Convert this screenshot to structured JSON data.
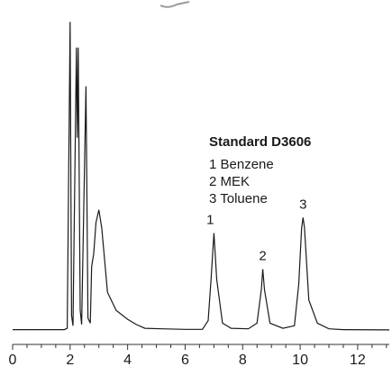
{
  "chart_data": {
    "type": "line",
    "title": "Standard D3606",
    "xlabel": "",
    "ylabel": "",
    "xlim": [
      0,
      13.1
    ],
    "x_ticks": [
      0,
      2,
      4,
      6,
      8,
      10,
      12
    ],
    "minor_ticks_per_major": 4,
    "grid": false,
    "legend_position": "right",
    "line_color": "#1a1a1a",
    "legend": [
      {
        "label": "1 Benzene"
      },
      {
        "label": "2 MEK"
      },
      {
        "label": "3 Toluene"
      }
    ],
    "peaks": [
      {
        "label": "1",
        "x": 7.0,
        "height": 0.38
      },
      {
        "label": "2",
        "x": 8.7,
        "height": 0.24
      },
      {
        "label": "3",
        "x": 10.1,
        "height": 0.44
      }
    ],
    "trace": [
      [
        0.0,
        0.005
      ],
      [
        1.8,
        0.005
      ],
      [
        1.9,
        0.01
      ],
      [
        2.0,
        1.2
      ],
      [
        2.05,
        0.06
      ],
      [
        2.1,
        0.02
      ],
      [
        2.22,
        1.1
      ],
      [
        2.25,
        0.75
      ],
      [
        2.28,
        1.1
      ],
      [
        2.35,
        0.08
      ],
      [
        2.4,
        0.025
      ],
      [
        2.55,
        0.95
      ],
      [
        2.62,
        0.05
      ],
      [
        2.7,
        0.03
      ],
      [
        2.75,
        0.25
      ],
      [
        2.82,
        0.3
      ],
      [
        2.9,
        0.42
      ],
      [
        3.0,
        0.47
      ],
      [
        3.1,
        0.4
      ],
      [
        3.3,
        0.15
      ],
      [
        3.6,
        0.08
      ],
      [
        4.0,
        0.045
      ],
      [
        4.3,
        0.025
      ],
      [
        4.6,
        0.01
      ],
      [
        5.2,
        0.008
      ],
      [
        6.0,
        0.006
      ],
      [
        6.6,
        0.006
      ],
      [
        6.8,
        0.04
      ],
      [
        6.9,
        0.2
      ],
      [
        7.0,
        0.38
      ],
      [
        7.1,
        0.2
      ],
      [
        7.3,
        0.03
      ],
      [
        7.6,
        0.01
      ],
      [
        8.2,
        0.008
      ],
      [
        8.5,
        0.03
      ],
      [
        8.65,
        0.16
      ],
      [
        8.7,
        0.24
      ],
      [
        8.76,
        0.16
      ],
      [
        8.95,
        0.03
      ],
      [
        9.4,
        0.01
      ],
      [
        9.8,
        0.02
      ],
      [
        9.95,
        0.18
      ],
      [
        10.05,
        0.4
      ],
      [
        10.1,
        0.44
      ],
      [
        10.15,
        0.4
      ],
      [
        10.3,
        0.12
      ],
      [
        10.6,
        0.03
      ],
      [
        11.0,
        0.008
      ],
      [
        11.5,
        0.005
      ],
      [
        13.1,
        0.004
      ]
    ]
  },
  "logo": {
    "icon": "logo-mark"
  }
}
